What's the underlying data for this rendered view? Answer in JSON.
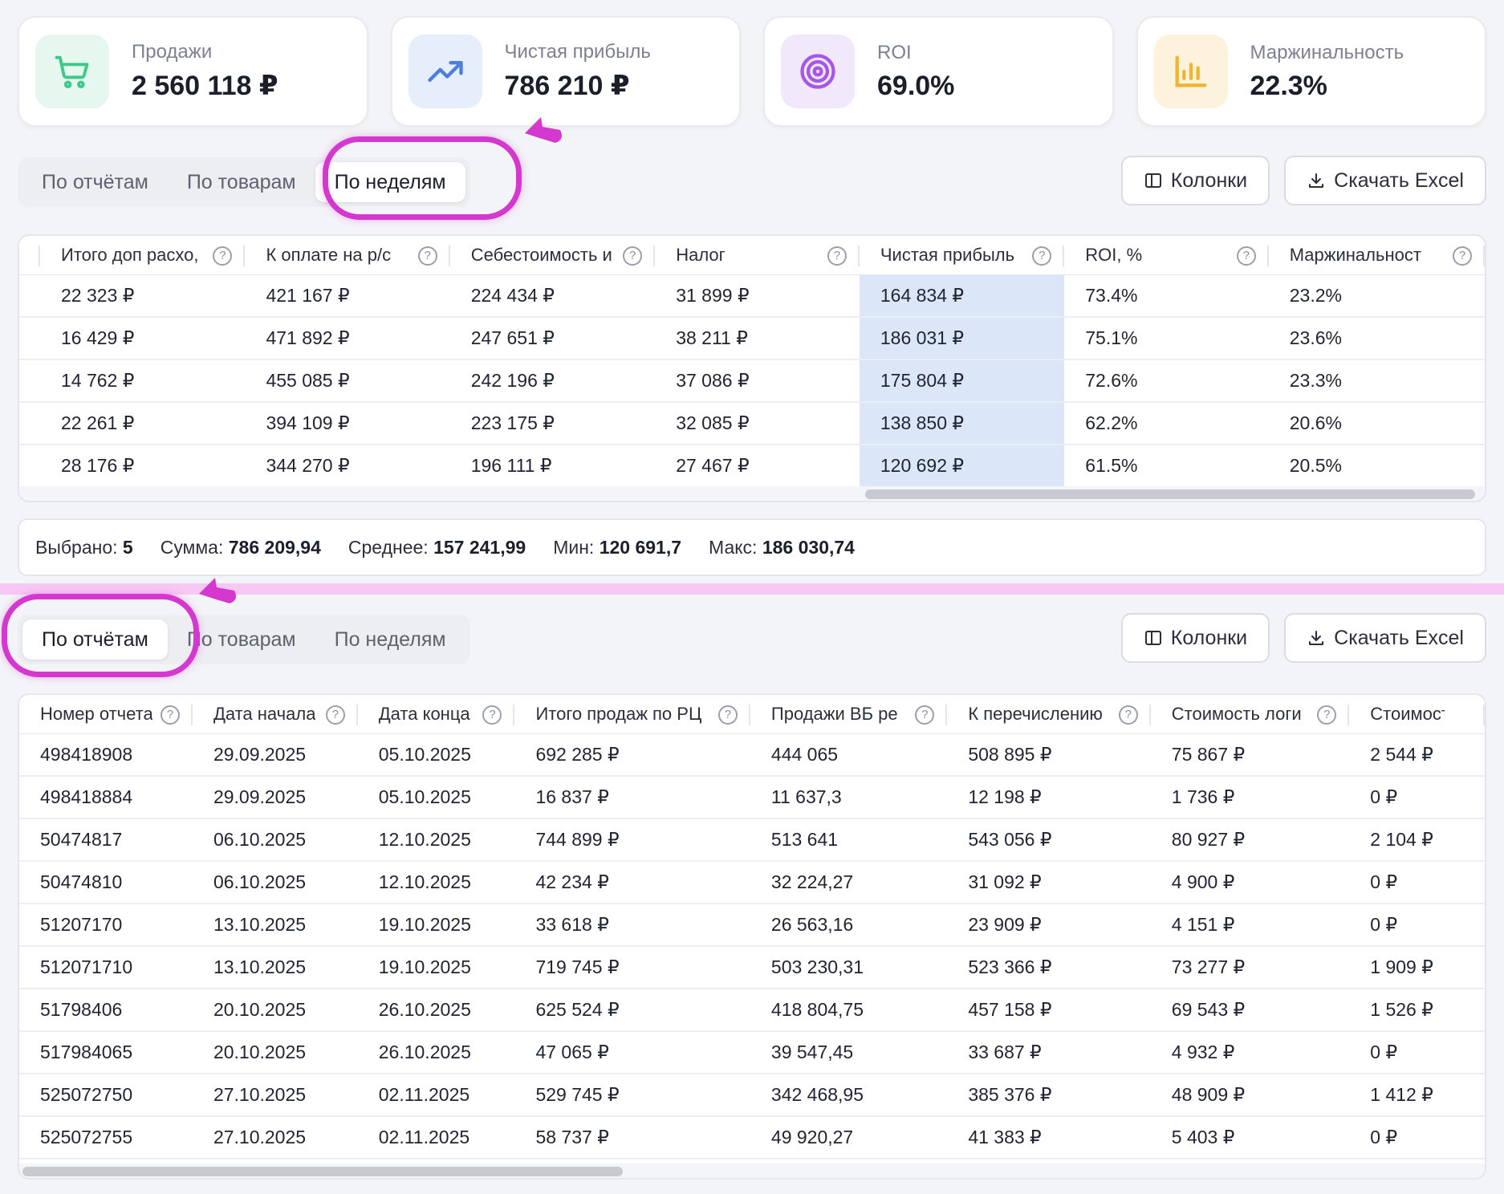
{
  "kpis": [
    {
      "label": "Продажи",
      "value": "2 560 118 ₽",
      "icon": "cart-icon",
      "bg": "#e5f7ee",
      "color": "#3cc98a"
    },
    {
      "label": "Чистая прибыль",
      "value": "786 210 ₽",
      "icon": "trend-up-icon",
      "bg": "#e6eefc",
      "color": "#4a7fe0"
    },
    {
      "label": "ROI",
      "value": "69.0%",
      "icon": "target-icon",
      "bg": "#f2e8fc",
      "color": "#a657e8"
    },
    {
      "label": "Маржинальность",
      "value": "22.3%",
      "icon": "bar-chart-icon",
      "bg": "#fdf3dc",
      "color": "#f0b434"
    }
  ],
  "top": {
    "tabs": [
      "По отчётам",
      "По товарам",
      "По неделям"
    ],
    "active_tab": "По неделям",
    "toolbar": {
      "columns_label": "Колонки",
      "excel_label": "Скачать Excel"
    },
    "columns": [
      "Итого доп расхо,",
      "К оплате на р/с",
      "Себестоимость и",
      "Налог",
      "Чистая прибыль",
      "ROI, %",
      "Маржинальност"
    ],
    "rows": [
      [
        "22 323 ₽",
        "421 167 ₽",
        "224 434 ₽",
        "31 899 ₽",
        "164 834 ₽",
        "73.4%",
        "23.2%"
      ],
      [
        "16 429 ₽",
        "471 892 ₽",
        "247 651 ₽",
        "38 211 ₽",
        "186 031 ₽",
        "75.1%",
        "23.6%"
      ],
      [
        "14 762 ₽",
        "455 085 ₽",
        "242 196 ₽",
        "37 086 ₽",
        "175 804 ₽",
        "72.6%",
        "23.3%"
      ],
      [
        "22 261 ₽",
        "394 109 ₽",
        "223 175 ₽",
        "32 085 ₽",
        "138 850 ₽",
        "62.2%",
        "20.6%"
      ],
      [
        "28 176 ₽",
        "344 270 ₽",
        "196 111 ₽",
        "27 467 ₽",
        "120 692 ₽",
        "61.5%",
        "20.5%"
      ]
    ],
    "stats": [
      {
        "label": "Выбрано:",
        "value": "5"
      },
      {
        "label": "Сумма:",
        "value": "786 209,94"
      },
      {
        "label": "Среднее:",
        "value": "157 241,99"
      },
      {
        "label": "Мин:",
        "value": "120 691,7"
      },
      {
        "label": "Макс:",
        "value": "186 030,74"
      }
    ]
  },
  "bottom": {
    "tabs": [
      "По отчётам",
      "По товарам",
      "По неделям"
    ],
    "active_tab": "По отчётам",
    "toolbar": {
      "columns_label": "Колонки",
      "excel_label": "Скачать Excel"
    },
    "columns": [
      "Номер отчета",
      "Дата начала",
      "Дата конца",
      "Итого продаж по РЦ",
      "Продажи ВБ ре",
      "К перечислению",
      "Стоимость логи",
      "Стоимость"
    ],
    "rows": [
      [
        "498418908",
        "29.09.2025",
        "05.10.2025",
        "692 285 ₽",
        "444 065",
        "508 895 ₽",
        "75 867 ₽",
        "2 544 ₽"
      ],
      [
        "498418884",
        "29.09.2025",
        "05.10.2025",
        "16 837 ₽",
        "11 637,3",
        "12 198 ₽",
        "1 736 ₽",
        "0 ₽"
      ],
      [
        "50474817",
        "06.10.2025",
        "12.10.2025",
        "744 899 ₽",
        "513 641",
        "543 056 ₽",
        "80 927 ₽",
        "2 104 ₽"
      ],
      [
        "50474810",
        "06.10.2025",
        "12.10.2025",
        "42 234 ₽",
        "32 224,27",
        "31 092 ₽",
        "4 900 ₽",
        "0 ₽"
      ],
      [
        "51207170",
        "13.10.2025",
        "19.10.2025",
        "33 618 ₽",
        "26 563,16",
        "23 909 ₽",
        "4 151 ₽",
        "0 ₽"
      ],
      [
        "512071710",
        "13.10.2025",
        "19.10.2025",
        "719 745 ₽",
        "503 230,31",
        "523 366 ₽",
        "73 277 ₽",
        "1 909 ₽"
      ],
      [
        "51798406",
        "20.10.2025",
        "26.10.2025",
        "625 524 ₽",
        "418 804,75",
        "457 158 ₽",
        "69 543 ₽",
        "1 526 ₽"
      ],
      [
        "517984065",
        "20.10.2025",
        "26.10.2025",
        "47 065 ₽",
        "39 547,45",
        "33 687 ₽",
        "4 932 ₽",
        "0 ₽"
      ],
      [
        "525072750",
        "27.10.2025",
        "02.11.2025",
        "529 745 ₽",
        "342 468,95",
        "385 376 ₽",
        "48 909 ₽",
        "1 412 ₽"
      ],
      [
        "525072755",
        "27.10.2025",
        "02.11.2025",
        "58 737 ₽",
        "49 920,27",
        "41 383 ₽",
        "5 403 ₽",
        "0 ₽"
      ]
    ]
  },
  "colors": {
    "accent_highlight": "#d438cf",
    "selected_column": "#dbe6f9"
  }
}
